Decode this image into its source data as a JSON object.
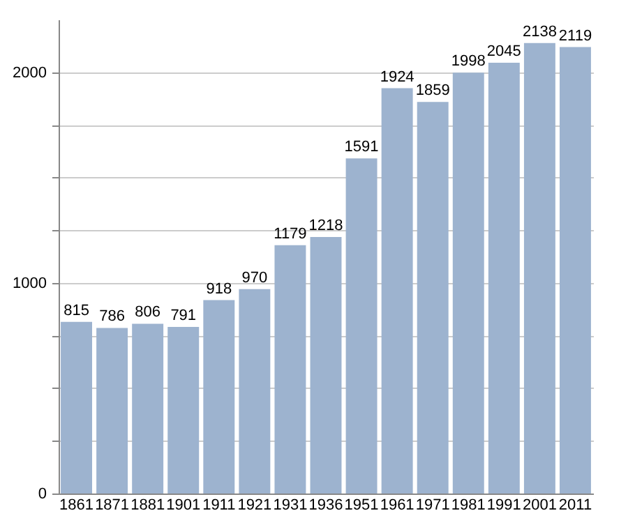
{
  "chart_data": {
    "type": "bar",
    "categories": [
      "1861",
      "1871",
      "1881",
      "1901",
      "1911",
      "1921",
      "1931",
      "1936",
      "1951",
      "1961",
      "1971",
      "1981",
      "1991",
      "2001",
      "2011"
    ],
    "values": [
      815,
      786,
      806,
      791,
      918,
      970,
      1179,
      1218,
      1591,
      1924,
      1859,
      1998,
      2045,
      2138,
      2119
    ],
    "color": "#9db3cf",
    "ylim": [
      0,
      2250
    ],
    "yticks": [
      0,
      {
        "value": 250,
        "label": null
      },
      {
        "value": 500,
        "label": null
      },
      {
        "value": 750,
        "label": null
      },
      1000,
      {
        "value": 1250,
        "label": null
      },
      {
        "value": 1500,
        "label": null
      },
      {
        "value": 1750,
        "label": null
      },
      2000
    ],
    "grid": true,
    "data_labels": true
  }
}
